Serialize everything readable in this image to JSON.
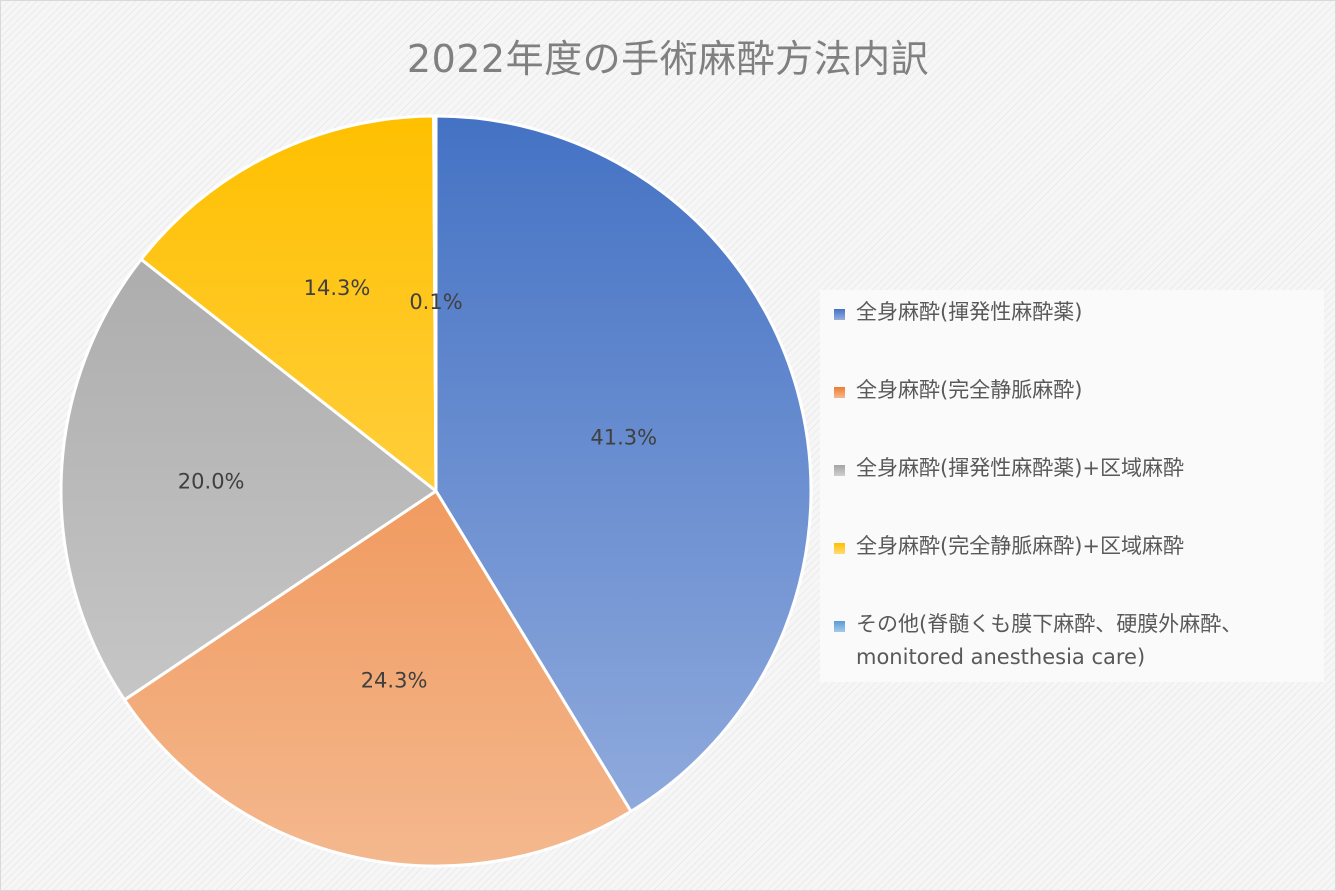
{
  "chart_data": {
    "type": "pie",
    "title": "2022年度の手術麻酔方法内訳",
    "legend_position": "right",
    "slices": [
      {
        "name": "全身麻酔(揮発性麻酔薬)",
        "value": 41.3,
        "label": "41.3%",
        "color_top": "#4472c4",
        "color_bottom": "#95aede"
      },
      {
        "name": "全身麻酔(完全静脈麻酔)",
        "value": 24.3,
        "label": "24.3%",
        "color_top": "#ed7d31",
        "color_bottom": "#f4b88e"
      },
      {
        "name": "全身麻酔(揮発性麻酔薬)+区域麻酔",
        "value": 20.0,
        "label": "20.0%",
        "color_top": "#a5a5a5",
        "color_bottom": "#cfcfcf"
      },
      {
        "name": "全身麻酔(完全静脈麻酔)+区域麻酔",
        "value": 14.3,
        "label": "14.3%",
        "color_top": "#ffc000",
        "color_bottom": "#ffdb75"
      },
      {
        "name": "その他(脊髄くも膜下麻酔、硬膜外麻酔、",
        "name_line2": "monitored anesthesia care)",
        "value": 0.1,
        "label": "0.1%",
        "color_top": "#5b9bd5",
        "color_bottom": "#a5c8ea"
      }
    ]
  }
}
